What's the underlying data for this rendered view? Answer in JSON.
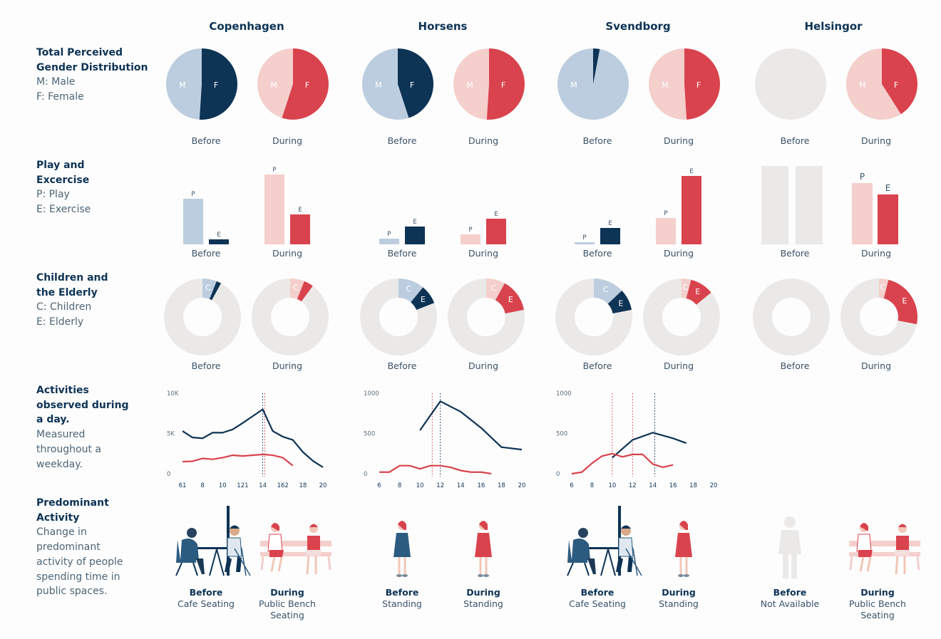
{
  "colors": {
    "navy": "#0d3355",
    "light_blue": "#bccddf",
    "red": "#d9434d",
    "pink": "#f4cfcc",
    "grey": "#ebe9e8"
  },
  "cities": [
    "Copenhagen",
    "Horsens",
    "Svendborg",
    "Helsingor"
  ],
  "rows": [
    {
      "title": "Total Perceived Gender Distribution",
      "sub": [
        "M: Male",
        "F: Female"
      ]
    },
    {
      "title": "Play and Excercise",
      "sub": [
        "P: Play",
        "E: Exercise"
      ]
    },
    {
      "title": "Children and the Elderly",
      "sub": [
        "C: Children",
        "E: Elderly"
      ]
    },
    {
      "title": "Activities observed during a day.",
      "sub": [
        "Measured throughout a weekday."
      ]
    },
    {
      "title": "Predominant Activity",
      "sub": [
        "Change in predominant activity of people spending time in public spaces."
      ]
    }
  ],
  "labels": {
    "before": "Before",
    "during": "During",
    "m": "M",
    "f": "F",
    "p": "P",
    "e": "E",
    "c": "C"
  },
  "chart_data": [
    {
      "type": "pie",
      "title": "Total Perceived Gender Distribution",
      "categories": [
        "M",
        "F"
      ],
      "series": [
        {
          "city": "Copenhagen",
          "period": "Before",
          "values": [
            49,
            51
          ]
        },
        {
          "city": "Copenhagen",
          "period": "During",
          "values": [
            45,
            55
          ]
        },
        {
          "city": "Horsens",
          "period": "Before",
          "values": [
            55,
            45
          ]
        },
        {
          "city": "Horsens",
          "period": "During",
          "values": [
            49,
            51
          ]
        },
        {
          "city": "Svendborg",
          "period": "Before",
          "values": [
            97,
            3
          ]
        },
        {
          "city": "Svendborg",
          "period": "During",
          "values": [
            51,
            49
          ]
        },
        {
          "city": "Helsingor",
          "period": "Before",
          "values": null
        },
        {
          "city": "Helsingor",
          "period": "During",
          "values": [
            59,
            41
          ]
        }
      ]
    },
    {
      "type": "bar",
      "title": "Play and Excercise",
      "categories": [
        "P",
        "E"
      ],
      "series": [
        {
          "city": "Copenhagen",
          "period": "Before",
          "values": [
            64,
            7
          ]
        },
        {
          "city": "Copenhagen",
          "period": "During",
          "values": [
            98,
            42
          ]
        },
        {
          "city": "Horsens",
          "period": "Before",
          "values": [
            8,
            25
          ]
        },
        {
          "city": "Horsens",
          "period": "During",
          "values": [
            14,
            36
          ]
        },
        {
          "city": "Svendborg",
          "period": "Before",
          "values": [
            3,
            23
          ]
        },
        {
          "city": "Svendborg",
          "period": "During",
          "values": [
            37,
            96
          ]
        },
        {
          "city": "Helsingor",
          "period": "Before",
          "values": null
        },
        {
          "city": "Helsingor",
          "period": "During",
          "values": [
            86,
            70
          ]
        }
      ]
    },
    {
      "type": "pie",
      "title": "Children and the Elderly",
      "categories": [
        "C",
        "E"
      ],
      "series": [
        {
          "city": "Copenhagen",
          "period": "Before",
          "values": [
            6,
            2
          ]
        },
        {
          "city": "Copenhagen",
          "period": "During",
          "values": [
            6,
            4
          ]
        },
        {
          "city": "Horsens",
          "period": "Before",
          "values": [
            11,
            8
          ]
        },
        {
          "city": "Horsens",
          "period": "During",
          "values": [
            8,
            14
          ]
        },
        {
          "city": "Svendborg",
          "period": "Before",
          "values": [
            13,
            9
          ]
        },
        {
          "city": "Svendborg",
          "period": "During",
          "values": [
            4,
            10
          ]
        },
        {
          "city": "Helsingor",
          "period": "Before",
          "values": null
        },
        {
          "city": "Helsingor",
          "period": "During",
          "values": [
            4,
            24
          ]
        }
      ]
    },
    {
      "type": "line",
      "title": "Activities observed during a day.",
      "charts": [
        {
          "city": "Copenhagen",
          "yticks": [
            "0",
            "5K",
            "10K"
          ],
          "ymax": 10000,
          "xticks": [
            "61",
            "8",
            "10",
            "121",
            "14",
            "162",
            "18",
            "20"
          ],
          "xtick_positions": [
            6,
            8,
            10,
            12,
            14,
            16,
            18,
            20
          ],
          "xlim": [
            6,
            20
          ],
          "vlines": [
            {
              "x": 14,
              "color": "navy"
            },
            {
              "x": 14.2,
              "color": "red"
            }
          ],
          "series": [
            {
              "color": "navy",
              "points": [
                [
                  6,
                  5300
                ],
                [
                  7,
                  4500
                ],
                [
                  8,
                  4400
                ],
                [
                  9,
                  5100
                ],
                [
                  10,
                  5100
                ],
                [
                  11,
                  5500
                ],
                [
                  12,
                  6300
                ],
                [
                  14,
                  8000
                ],
                [
                  15,
                  5300
                ],
                [
                  16,
                  4600
                ],
                [
                  17,
                  4200
                ],
                [
                  18,
                  2700
                ],
                [
                  19,
                  1600
                ],
                [
                  20,
                  800
                ]
              ]
            },
            {
              "color": "red",
              "points": [
                [
                  6,
                  1500
                ],
                [
                  7,
                  1550
                ],
                [
                  8,
                  1900
                ],
                [
                  9,
                  1800
                ],
                [
                  10,
                  2000
                ],
                [
                  11,
                  2300
                ],
                [
                  12,
                  2200
                ],
                [
                  14,
                  2400
                ],
                [
                  15,
                  2300
                ],
                [
                  16,
                  2000
                ],
                [
                  17,
                  1000
                ]
              ]
            }
          ]
        },
        {
          "city": "Horsens",
          "yticks": [
            "0",
            "500",
            "1000"
          ],
          "ymax": 1000,
          "xticks": [
            "6",
            "8",
            "10",
            "12",
            "14",
            "16",
            "18",
            "20"
          ],
          "xtick_positions": [
            6,
            8,
            10,
            12,
            14,
            16,
            18,
            20
          ],
          "xlim": [
            6,
            20
          ],
          "vlines": [
            {
              "x": 11.2,
              "color": "red"
            },
            {
              "x": 12,
              "color": "navy"
            }
          ],
          "series": [
            {
              "color": "navy",
              "points": [
                [
                  10,
                  540
                ],
                [
                  12,
                  900
                ],
                [
                  14,
                  770
                ],
                [
                  16,
                  570
                ],
                [
                  18,
                  330
                ],
                [
                  20,
                  300
                ]
              ]
            },
            {
              "color": "red",
              "points": [
                [
                  6,
                  20
                ],
                [
                  7,
                  20
                ],
                [
                  8,
                  100
                ],
                [
                  9,
                  100
                ],
                [
                  10,
                  60
                ],
                [
                  11,
                  100
                ],
                [
                  12,
                  100
                ],
                [
                  13,
                  80
                ],
                [
                  14,
                  40
                ],
                [
                  15,
                  20
                ],
                [
                  16,
                  20
                ],
                [
                  17,
                  0
                ]
              ]
            }
          ]
        },
        {
          "city": "Svendborg",
          "yticks": [
            "0",
            "500",
            "1000"
          ],
          "ymax": 1000,
          "xticks": [
            "6",
            "8",
            "10",
            "12",
            "14",
            "16",
            "18",
            "20"
          ],
          "xtick_positions": [
            6,
            8,
            10,
            12,
            14,
            16,
            18,
            20
          ],
          "xlim": [
            6,
            20
          ],
          "vlines": [
            {
              "x": 10,
              "color": "red"
            },
            {
              "x": 12,
              "color": "red"
            },
            {
              "x": 14.2,
              "color": "navy"
            }
          ],
          "series": [
            {
              "color": "navy",
              "points": [
                [
                  10,
                  200
                ],
                [
                  12,
                  420
                ],
                [
                  14,
                  510
                ],
                [
                  16,
                  440
                ],
                [
                  17.3,
                  380
                ]
              ]
            },
            {
              "color": "red",
              "points": [
                [
                  6,
                  0
                ],
                [
                  7,
                  20
                ],
                [
                  8,
                  130
                ],
                [
                  9,
                  220
                ],
                [
                  10,
                  250
                ],
                [
                  11,
                  210
                ],
                [
                  12,
                  240
                ],
                [
                  13,
                  240
                ],
                [
                  14,
                  120
                ],
                [
                  15,
                  80
                ],
                [
                  16,
                  110
                ]
              ]
            }
          ]
        },
        {
          "city": "Helsingor",
          "series": null
        }
      ]
    }
  ],
  "activities": [
    {
      "city": "Copenhagen",
      "before": [
        "Before",
        "Cafe Seating"
      ],
      "during": [
        "During",
        "Public Bench",
        "Seating"
      ]
    },
    {
      "city": "Horsens",
      "before": [
        "Before",
        "Standing"
      ],
      "during": [
        "During",
        "Standing"
      ]
    },
    {
      "city": "Svendborg",
      "before": [
        "Before",
        "Cafe Seating"
      ],
      "during": [
        "During",
        "Standing"
      ]
    },
    {
      "city": "Helsingor",
      "before": [
        "Before",
        "Not Available"
      ],
      "during": [
        "During",
        "Public Bench",
        "Seating"
      ]
    }
  ]
}
